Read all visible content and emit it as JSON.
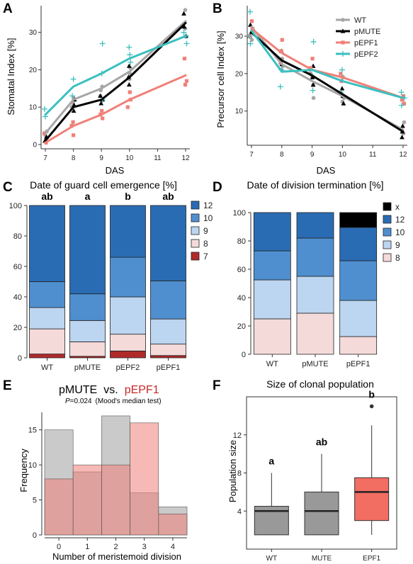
{
  "panels": {
    "A": {
      "letter": "A",
      "xlabel": "DAS",
      "ylabel": "Stomatal Index [%]"
    },
    "B": {
      "letter": "B",
      "xlabel": "DAS",
      "ylabel": "Precursor cell Index [%]"
    },
    "C": {
      "letter": "C",
      "title": "Date of guard cell emergence [%]",
      "significance": [
        "ab",
        "a",
        "b",
        "ab"
      ]
    },
    "D": {
      "letter": "D",
      "title": "Date of division termination [%]"
    },
    "E": {
      "letter": "E",
      "title_left": "pMUTE",
      "title_vs": "vs.",
      "title_right": "pEPF1",
      "stat_p": "P",
      "stat_val": "=0.024",
      "stat_test": "(Mood's median test)",
      "xlabel": "Number of meristemoid division",
      "ylabel": "Frequency"
    },
    "F": {
      "letter": "F",
      "title": "Size of clonal population",
      "ylabel": "Population size",
      "significance": [
        "a",
        "ab",
        "b"
      ]
    }
  },
  "colors": {
    "WT": "#a6a6a6",
    "pMUTE": "#000000",
    "pEPF1": "#f08078",
    "pEPF2": "#3bbfbf",
    "blue12": "#2a6cb3",
    "blue10": "#4f8fcf",
    "blue9": "#bcd5f0",
    "pink8": "#f5dada",
    "red7": "#b02a2a",
    "blackx": "#000000"
  },
  "chart_data": [
    {
      "panel": "A",
      "type": "line",
      "x": [
        7,
        8,
        9,
        10,
        12
      ],
      "xlabel": "DAS",
      "ylabel": "Stomatal Index [%]",
      "xlim": [
        7,
        12
      ],
      "ylim": [
        0,
        36
      ],
      "xticks": [
        7,
        8,
        9,
        10,
        11,
        12
      ],
      "yticks": [
        0,
        10,
        20,
        30
      ],
      "series": [
        {
          "name": "WT",
          "color": "#a6a6a6",
          "marker": "circle",
          "values": [
            3,
            12,
            15,
            19.5,
            33
          ],
          "points": [
            [
              7,
              2.5
            ],
            [
              7,
              3.5
            ],
            [
              8,
              10
            ],
            [
              8,
              11
            ],
            [
              8,
              12.5
            ],
            [
              9,
              13
            ],
            [
              9,
              14.5
            ],
            [
              9,
              15.5
            ],
            [
              10,
              17.5
            ],
            [
              10,
              19
            ],
            [
              10,
              20.5
            ],
            [
              12,
              29
            ],
            [
              12,
              31
            ],
            [
              12,
              36
            ]
          ]
        },
        {
          "name": "pMUTE",
          "color": "#000000",
          "marker": "triangle",
          "values": [
            1,
            10,
            12,
            18,
            32.5
          ],
          "points": [
            [
              7,
              1
            ],
            [
              7,
              2
            ],
            [
              8,
              9
            ],
            [
              8,
              10.5
            ],
            [
              8,
              12
            ],
            [
              9,
              11
            ],
            [
              9,
              12
            ],
            [
              9,
              13
            ],
            [
              10,
              16
            ],
            [
              10,
              18
            ],
            [
              10,
              21
            ],
            [
              12,
              29
            ],
            [
              12,
              31.5
            ],
            [
              12,
              35
            ]
          ]
        },
        {
          "name": "pEPF1",
          "color": "#f08078",
          "marker": "square",
          "values": [
            0.5,
            5,
            8,
            12,
            18.5
          ],
          "points": [
            [
              7,
              0.5
            ],
            [
              7,
              3
            ],
            [
              8,
              2.5
            ],
            [
              8,
              5
            ],
            [
              8,
              6
            ],
            [
              9,
              7
            ],
            [
              9,
              8
            ],
            [
              9,
              9
            ],
            [
              10,
              10
            ],
            [
              10,
              12
            ],
            [
              10,
              14
            ],
            [
              12,
              16
            ],
            [
              12,
              17
            ],
            [
              12,
              23
            ]
          ]
        },
        {
          "name": "pEPF2",
          "color": "#3bbfbf",
          "marker": "plus",
          "values": [
            8,
            15.5,
            19,
            23,
            29
          ],
          "points": [
            [
              7,
              7.5
            ],
            [
              7,
              9.5
            ],
            [
              8,
              13
            ],
            [
              8,
              17.5
            ],
            [
              9,
              12
            ],
            [
              9,
              19
            ],
            [
              9,
              27
            ],
            [
              10,
              22
            ],
            [
              10,
              24
            ],
            [
              10,
              26
            ],
            [
              12,
              27
            ],
            [
              12,
              29
            ],
            [
              12,
              30
            ]
          ]
        }
      ]
    },
    {
      "panel": "B",
      "type": "line",
      "x": [
        7,
        8,
        9,
        10,
        12
      ],
      "xlabel": "DAS",
      "ylabel": "Precursor cell Index [%]",
      "xlim": [
        7,
        12
      ],
      "ylim": [
        2,
        37
      ],
      "xticks": [
        7,
        8,
        9,
        10,
        11,
        12
      ],
      "yticks": [
        10,
        20,
        30
      ],
      "legend": "top-right",
      "series": [
        {
          "name": "WT",
          "color": "#a6a6a6",
          "marker": "circle",
          "values": [
            32.5,
            22.5,
            18,
            14,
            5
          ],
          "points": [
            [
              7,
              29
            ],
            [
              7,
              32
            ],
            [
              7,
              34
            ],
            [
              8,
              21
            ],
            [
              8,
              22
            ],
            [
              8,
              24
            ],
            [
              9,
              13.5
            ],
            [
              9,
              17
            ],
            [
              9,
              19
            ],
            [
              10,
              12.5
            ],
            [
              10,
              13.5
            ],
            [
              10,
              15
            ],
            [
              12,
              4
            ],
            [
              12,
              5
            ],
            [
              12,
              7
            ]
          ]
        },
        {
          "name": "pMUTE",
          "color": "#000000",
          "marker": "triangle",
          "values": [
            31,
            23.5,
            19.5,
            14.5,
            4.5
          ],
          "points": [
            [
              7,
              30
            ],
            [
              7,
              31
            ],
            [
              7,
              33
            ],
            [
              8,
              22.5
            ],
            [
              8,
              23
            ],
            [
              8,
              26
            ],
            [
              9,
              17
            ],
            [
              9,
              19
            ],
            [
              9,
              22
            ],
            [
              10,
              12
            ],
            [
              10,
              14
            ],
            [
              10,
              16
            ],
            [
              12,
              3
            ],
            [
              12,
              4.5
            ],
            [
              12,
              6
            ]
          ]
        },
        {
          "name": "pEPF1",
          "color": "#f08078",
          "marker": "square",
          "values": [
            32,
            25.5,
            21,
            19,
            13.5
          ],
          "points": [
            [
              7,
              30
            ],
            [
              7,
              32
            ],
            [
              7,
              34
            ],
            [
              8,
              23
            ],
            [
              8,
              26
            ],
            [
              8,
              29
            ],
            [
              9,
              20
            ],
            [
              9,
              21.5
            ],
            [
              9,
              24
            ],
            [
              10,
              18
            ],
            [
              10,
              19
            ],
            [
              10,
              20
            ],
            [
              12,
              12
            ],
            [
              12,
              13
            ],
            [
              12,
              14
            ]
          ]
        },
        {
          "name": "pEPF2",
          "color": "#3bbfbf",
          "marker": "plus",
          "values": [
            31.5,
            20.5,
            21,
            18,
            13.5
          ],
          "points": [
            [
              7,
              28
            ],
            [
              7,
              30
            ],
            [
              7,
              36.5
            ],
            [
              8,
              16.5
            ],
            [
              8,
              21
            ],
            [
              9,
              15.5
            ],
            [
              9,
              20
            ],
            [
              9,
              28.5
            ],
            [
              10,
              15
            ],
            [
              10,
              19
            ],
            [
              10,
              21
            ],
            [
              12,
              11.5
            ],
            [
              12,
              13.5
            ],
            [
              12,
              15
            ]
          ]
        }
      ]
    },
    {
      "panel": "C",
      "type": "bar",
      "stacked": true,
      "title": "Date of guard cell emergence [%]",
      "categories": [
        "WT",
        "pMUTE",
        "pEPF2",
        "pEPF1"
      ],
      "ylim": [
        0,
        100
      ],
      "yticks": [
        0,
        20,
        40,
        60,
        80,
        100
      ],
      "legend": "right",
      "significance": [
        "ab",
        "a",
        "b",
        "ab"
      ],
      "series": [
        {
          "name": "7",
          "color": "#b02a2a",
          "values": [
            2.5,
            1,
            4.5,
            1.5
          ]
        },
        {
          "name": "8",
          "color": "#f5dada",
          "values": [
            16.5,
            9.5,
            11,
            7.5
          ]
        },
        {
          "name": "9",
          "color": "#bcd5f0",
          "values": [
            14,
            14,
            24.5,
            16.5
          ]
        },
        {
          "name": "10",
          "color": "#4f8fcf",
          "values": [
            17,
            17.5,
            26,
            25
          ]
        },
        {
          "name": "12",
          "color": "#2a6cb3",
          "values": [
            50,
            58,
            34,
            49.5
          ]
        }
      ]
    },
    {
      "panel": "D",
      "type": "bar",
      "stacked": true,
      "title": "Date of division termination [%]",
      "categories": [
        "WT",
        "pMUTE",
        "pEPF1"
      ],
      "ylim": [
        0,
        100
      ],
      "yticks": [
        0,
        20,
        40,
        60,
        80,
        100
      ],
      "legend": "right",
      "series": [
        {
          "name": "8",
          "color": "#f5dada",
          "values": [
            25,
            29,
            12.5
          ]
        },
        {
          "name": "9",
          "color": "#bcd5f0",
          "values": [
            27.5,
            26,
            25.5
          ]
        },
        {
          "name": "10",
          "color": "#4f8fcf",
          "values": [
            20.5,
            27,
            28
          ]
        },
        {
          "name": "12",
          "color": "#2a6cb3",
          "values": [
            27,
            18,
            23.5
          ]
        },
        {
          "name": "x",
          "color": "#000000",
          "values": [
            0,
            0,
            10.5
          ]
        }
      ]
    },
    {
      "panel": "E",
      "type": "bar",
      "histogram": true,
      "xlabel": "Number of meristemoid division",
      "ylabel": "Frequency",
      "bins": [
        [
          -0.5,
          0.5
        ],
        [
          0.5,
          1.5
        ],
        [
          1.5,
          2.5
        ],
        [
          2.5,
          3.5
        ],
        [
          3.5,
          4.5
        ]
      ],
      "xticks": [
        0,
        1,
        2,
        3,
        4
      ],
      "yticks": [
        0,
        5,
        10,
        15
      ],
      "ylim": [
        0,
        17.5
      ],
      "series": [
        {
          "name": "pMUTE",
          "color": "#b8b8b8",
          "values": [
            15,
            9,
            17,
            6,
            4
          ]
        },
        {
          "name": "pEPF1",
          "color": "#f08078",
          "values": [
            8,
            10,
            10,
            16,
            3
          ]
        }
      ]
    },
    {
      "panel": "F",
      "type": "box",
      "title": "Size of clonal population",
      "ylabel": "Population size",
      "categories": [
        "WT",
        "MUTE",
        "EPF1"
      ],
      "ylim": [
        0,
        16
      ],
      "yticks": [
        4,
        8,
        12
      ],
      "significance": [
        "a",
        "ab",
        "b"
      ],
      "boxes": [
        {
          "name": "WT",
          "color": "#999999",
          "whisker_low": 1.5,
          "q1": 1.5,
          "median": 4,
          "q3": 4.5,
          "whisker_high": 8,
          "outliers": []
        },
        {
          "name": "MUTE",
          "color": "#999999",
          "whisker_low": 1.5,
          "q1": 1.5,
          "median": 4,
          "q3": 6,
          "whisker_high": 10,
          "outliers": []
        },
        {
          "name": "EPF1",
          "color": "#f26d62",
          "whisker_low": 1.5,
          "q1": 3,
          "median": 6,
          "q3": 7.5,
          "whisker_high": 13,
          "outliers": [
            15
          ]
        }
      ]
    }
  ]
}
